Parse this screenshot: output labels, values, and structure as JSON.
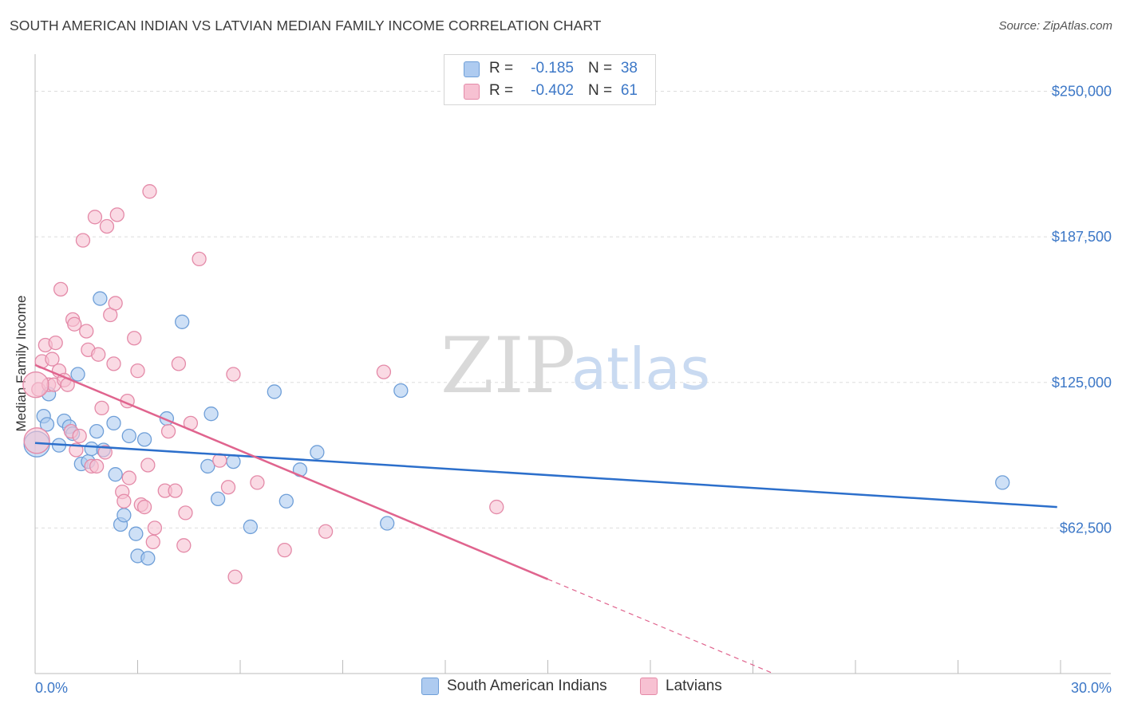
{
  "title": "SOUTH AMERICAN INDIAN VS LATVIAN MEDIAN FAMILY INCOME CORRELATION CHART",
  "source": "Source: ZipAtlas.com",
  "watermark": {
    "zip": "ZIP",
    "atlas": "atlas"
  },
  "legend": {
    "r_label": "R =",
    "n_label": "N =",
    "series": [
      {
        "r": "-0.185",
        "n": "38"
      },
      {
        "r": "-0.402",
        "n": "61"
      }
    ]
  },
  "colors": {
    "blue_fill": "#aecbf0",
    "blue_stroke": "#6f9fd8",
    "blue_line": "#2c6fcb",
    "pink_fill": "#f7c1d2",
    "pink_stroke": "#e48aa8",
    "pink_line": "#e0648e",
    "tick_text": "#3d78c7",
    "grid": "#dddddd"
  },
  "chart_data": {
    "type": "scatter",
    "title": "SOUTH AMERICAN INDIAN VS LATVIAN MEDIAN FAMILY INCOME CORRELATION CHART",
    "xlabel": "",
    "ylabel": "Median Family Income",
    "xlim": [
      0,
      30
    ],
    "ylim": [
      0,
      262500
    ],
    "x_tick_labels": [
      "0.0%",
      "30.0%"
    ],
    "y_ticks": [
      62500,
      125000,
      187500,
      250000
    ],
    "y_tick_labels": [
      "$62,500",
      "$125,000",
      "$187,500",
      "$250,000"
    ],
    "grid": true,
    "legend_position": "top-center",
    "series": [
      {
        "name": "South American Indians",
        "color": "#aecbf0",
        "points": [
          [
            0.05,
            98500
          ],
          [
            0.25,
            110500
          ],
          [
            0.4,
            120000
          ],
          [
            0.35,
            107000
          ],
          [
            0.7,
            98000
          ],
          [
            0.85,
            108500
          ],
          [
            1.0,
            106000
          ],
          [
            1.1,
            103000
          ],
          [
            1.25,
            128500
          ],
          [
            1.35,
            90000
          ],
          [
            1.55,
            91000
          ],
          [
            1.65,
            96500
          ],
          [
            1.8,
            104000
          ],
          [
            1.9,
            161000
          ],
          [
            2.0,
            96000
          ],
          [
            2.3,
            107500
          ],
          [
            2.35,
            85500
          ],
          [
            2.5,
            64000
          ],
          [
            2.6,
            68000
          ],
          [
            2.75,
            102000
          ],
          [
            2.95,
            60000
          ],
          [
            3.0,
            50500
          ],
          [
            3.2,
            100500
          ],
          [
            3.3,
            49500
          ],
          [
            3.85,
            109500
          ],
          [
            4.3,
            151000
          ],
          [
            5.05,
            89000
          ],
          [
            5.15,
            111500
          ],
          [
            5.35,
            75000
          ],
          [
            5.8,
            91000
          ],
          [
            6.3,
            63000
          ],
          [
            7.0,
            121000
          ],
          [
            7.35,
            74000
          ],
          [
            7.75,
            87500
          ],
          [
            8.25,
            95000
          ],
          [
            10.3,
            64500
          ],
          [
            10.7,
            121500
          ],
          [
            28.3,
            82000
          ]
        ]
      },
      {
        "name": "Latvians",
        "color": "#f7c1d2",
        "points": [
          [
            0.05,
            100000
          ],
          [
            0.1,
            122000
          ],
          [
            0.2,
            134000
          ],
          [
            0.3,
            141000
          ],
          [
            0.4,
            124000
          ],
          [
            0.5,
            135000
          ],
          [
            0.55,
            124000
          ],
          [
            0.6,
            142000
          ],
          [
            0.7,
            130000
          ],
          [
            0.75,
            165000
          ],
          [
            0.85,
            126000
          ],
          [
            0.95,
            124000
          ],
          [
            1.05,
            104000
          ],
          [
            1.1,
            152000
          ],
          [
            1.15,
            150000
          ],
          [
            1.2,
            96000
          ],
          [
            1.3,
            102000
          ],
          [
            1.4,
            186000
          ],
          [
            1.5,
            147000
          ],
          [
            1.55,
            139000
          ],
          [
            1.65,
            89000
          ],
          [
            1.75,
            196000
          ],
          [
            1.8,
            89000
          ],
          [
            1.85,
            137000
          ],
          [
            1.95,
            114000
          ],
          [
            2.05,
            95000
          ],
          [
            2.1,
            192000
          ],
          [
            2.2,
            154000
          ],
          [
            2.3,
            133000
          ],
          [
            2.35,
            159000
          ],
          [
            2.4,
            197000
          ],
          [
            2.55,
            78000
          ],
          [
            2.6,
            74000
          ],
          [
            2.7,
            117000
          ],
          [
            2.75,
            84000
          ],
          [
            2.9,
            144000
          ],
          [
            3.0,
            130000
          ],
          [
            3.1,
            72500
          ],
          [
            3.2,
            71500
          ],
          [
            3.3,
            89500
          ],
          [
            3.35,
            207000
          ],
          [
            3.45,
            56500
          ],
          [
            3.5,
            62500
          ],
          [
            3.8,
            78500
          ],
          [
            3.9,
            104000
          ],
          [
            4.1,
            78500
          ],
          [
            4.2,
            133000
          ],
          [
            4.35,
            55000
          ],
          [
            4.4,
            69000
          ],
          [
            4.55,
            107500
          ],
          [
            4.8,
            178000
          ],
          [
            5.4,
            91500
          ],
          [
            5.65,
            80000
          ],
          [
            5.8,
            128500
          ],
          [
            5.85,
            41500
          ],
          [
            6.5,
            82000
          ],
          [
            7.3,
            53000
          ],
          [
            8.5,
            61000
          ],
          [
            10.2,
            129500
          ],
          [
            13.5,
            71500
          ],
          [
            0.02,
            124000
          ]
        ]
      }
    ],
    "trendlines": [
      {
        "series": "South American Indians",
        "from": [
          0,
          99000
        ],
        "to": [
          29.9,
          71500
        ],
        "style": "solid"
      },
      {
        "series": "Latvians",
        "from": [
          0,
          132500
        ],
        "to": [
          15.0,
          40500
        ],
        "style": "solid"
      },
      {
        "series": "Latvians",
        "from": [
          15.0,
          40500
        ],
        "to": [
          21.6,
          0
        ],
        "style": "dashed"
      }
    ]
  }
}
